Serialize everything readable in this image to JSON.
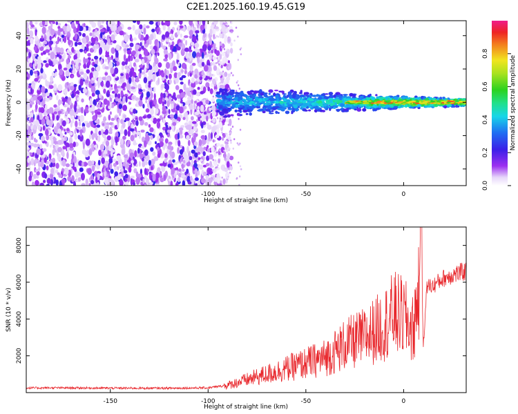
{
  "title": "C2E1.2025.160.19.45.G19",
  "chart_data": [
    {
      "type": "heatmap",
      "xlabel": "Height of straight line (km)",
      "ylabel": "Frequency (Hz)",
      "xlim": [
        -193,
        32
      ],
      "ylim": [
        -50,
        49
      ],
      "xticks": [
        -150,
        -100,
        -50,
        0
      ],
      "xtick_labels": [
        "-150",
        "-100",
        "-50",
        "0"
      ],
      "yticks": [
        -40,
        -20,
        0,
        20,
        40
      ],
      "ytick_labels": [
        "-40",
        "-20",
        "0",
        "20",
        "40"
      ],
      "colorbar": {
        "label": "Normalized spectral amplitude",
        "range": [
          0,
          1
        ],
        "ticks": [
          "0.0",
          "0.2",
          "0.4",
          "0.6",
          "0.8"
        ],
        "colormap": "rainbow (white-purple-blue-cyan-green-yellow-red-magenta)"
      },
      "description_regions": [
        {
          "x_range": [
            -193,
            -90
          ],
          "pattern": "broadband noise across all frequencies, purple/violet"
        },
        {
          "x_range": [
            -95,
            -55
          ],
          "pattern": "signal band near 0 Hz, width about +/-8 Hz, blue-cyan"
        },
        {
          "x_range": [
            -55,
            32
          ],
          "pattern": "narrowing tone near 0 Hz, green-yellow-red"
        }
      ]
    },
    {
      "type": "line",
      "xlabel": "Height of straight line (km)",
      "ylabel": "SNR (10 * v/v)",
      "xlim": [
        -193,
        32
      ],
      "ylim": [
        0,
        9000
      ],
      "xticks": [
        -150,
        -100,
        -50,
        0
      ],
      "xtick_labels": [
        "-150",
        "-100",
        "-50",
        "0"
      ],
      "yticks": [
        2000,
        4000,
        6000,
        8000
      ],
      "ytick_labels": [
        "2000",
        "4000",
        "6000",
        "8000"
      ],
      "series": [
        {
          "color": "#e8262b",
          "x": [
            -193,
            -180,
            -160,
            -140,
            -120,
            -100,
            -90,
            -80,
            -70,
            -60,
            -50,
            -40,
            -30,
            -20,
            -10,
            -5,
            0,
            5,
            8,
            9,
            10,
            12,
            15,
            20,
            25,
            32
          ],
          "y": [
            250,
            260,
            250,
            240,
            240,
            260,
            400,
            700,
            1000,
            1300,
            1600,
            1900,
            2600,
            3000,
            3700,
            4300,
            4100,
            3400,
            6000,
            9000,
            2500,
            5800,
            5800,
            6200,
            6400,
            6600
          ]
        }
      ]
    }
  ]
}
